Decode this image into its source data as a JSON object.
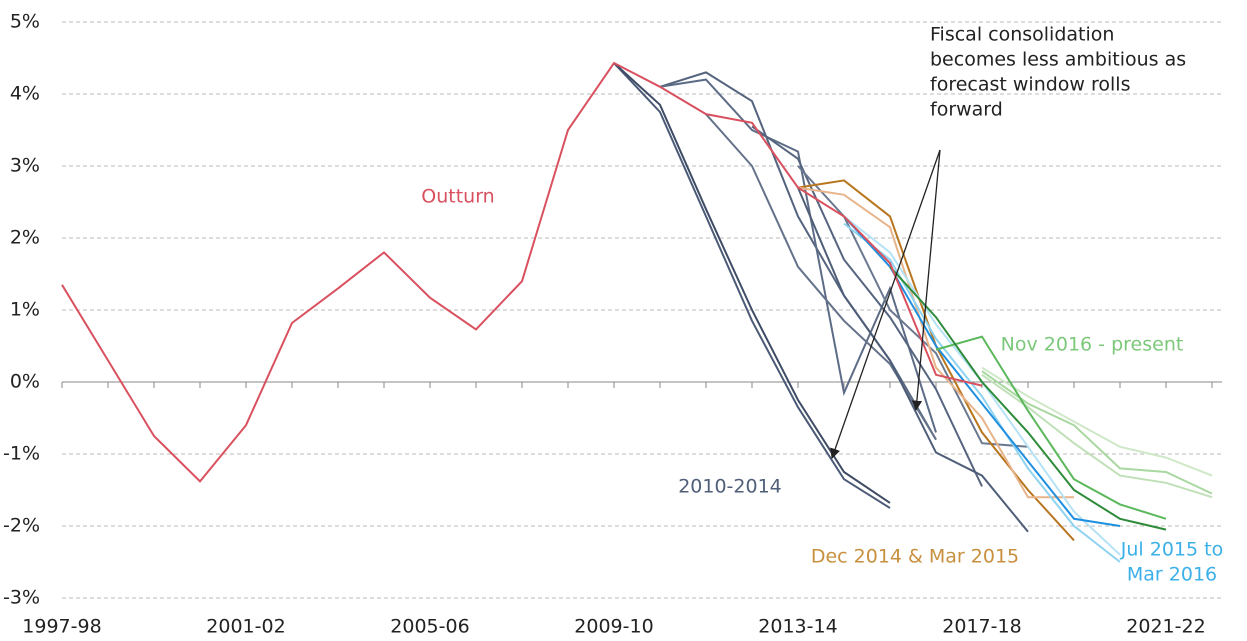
{
  "chart_data": {
    "type": "line",
    "categories": [
      "1997-98",
      null,
      null,
      null,
      "2001-02",
      null,
      null,
      null,
      "2005-06",
      null,
      null,
      null,
      "2009-10",
      null,
      null,
      null,
      "2013-14",
      null,
      null,
      null,
      "2017-18",
      null,
      null,
      null,
      "2021-22",
      null
    ],
    "ylim": [
      -3,
      5
    ],
    "yticks": [
      {
        "value": -3,
        "label": "-3%"
      },
      {
        "value": -2,
        "label": "-2%"
      },
      {
        "value": -1,
        "label": "-1%"
      },
      {
        "value": 0,
        "label": "0%"
      },
      {
        "value": 1,
        "label": "1%"
      },
      {
        "value": 2,
        "label": "2%"
      },
      {
        "value": 3,
        "label": "3%"
      },
      {
        "value": 4,
        "label": "4%"
      },
      {
        "value": 5,
        "label": "5%"
      }
    ],
    "grid": true,
    "series": [
      {
        "color": "#4b5a76",
        "values": [
          null,
          null,
          null,
          null,
          null,
          null,
          null,
          null,
          null,
          null,
          null,
          null,
          4.43,
          3.75,
          2.3,
          0.85,
          -0.35,
          -1.35,
          -1.75,
          null,
          null,
          null,
          null,
          null,
          null,
          null
        ]
      },
      {
        "color": "#3f4c66",
        "values": [
          null,
          null,
          null,
          null,
          null,
          null,
          null,
          null,
          null,
          null,
          null,
          null,
          4.43,
          3.85,
          2.4,
          1.0,
          -0.25,
          -1.25,
          -1.68,
          null,
          null,
          null,
          null,
          null,
          null,
          null
        ]
      },
      {
        "color": "#55647e",
        "values": [
          null,
          null,
          null,
          null,
          null,
          null,
          null,
          null,
          null,
          null,
          null,
          null,
          null,
          4.1,
          4.3,
          3.9,
          2.3,
          1.2,
          0.3,
          -0.8,
          null,
          null,
          null,
          null,
          null,
          null
        ]
      },
      {
        "color": "#5d6c86",
        "values": [
          null,
          null,
          null,
          null,
          null,
          null,
          null,
          null,
          null,
          null,
          null,
          null,
          null,
          4.1,
          4.2,
          3.5,
          3.2,
          -0.15,
          1.3,
          -0.7,
          null,
          null,
          null,
          null,
          null,
          null
        ]
      },
      {
        "color": "#64728a",
        "values": [
          null,
          null,
          null,
          null,
          null,
          null,
          null,
          null,
          null,
          null,
          null,
          null,
          null,
          null,
          3.72,
          3.0,
          1.6,
          0.85,
          0.25,
          -0.8,
          null,
          null,
          null,
          null,
          null,
          null
        ]
      },
      {
        "color": "#56657f",
        "values": [
          null,
          null,
          null,
          null,
          null,
          null,
          null,
          null,
          null,
          null,
          null,
          null,
          null,
          null,
          null,
          3.55,
          3.1,
          1.7,
          0.9,
          -0.1,
          -1.45,
          null,
          null,
          null,
          null,
          null
        ]
      },
      {
        "color": "#4f5e78",
        "values": [
          null,
          null,
          null,
          null,
          null,
          null,
          null,
          null,
          null,
          null,
          null,
          null,
          null,
          null,
          null,
          null,
          2.7,
          1.2,
          0.3,
          -0.98,
          -1.3,
          -2.08,
          null,
          null,
          null,
          null
        ]
      },
      {
        "color": "#6a7890",
        "values": [
          null,
          null,
          null,
          null,
          null,
          null,
          null,
          null,
          null,
          null,
          null,
          null,
          null,
          null,
          null,
          null,
          3.0,
          2.3,
          1.0,
          0.4,
          -0.85,
          -0.9,
          null,
          null,
          null,
          null
        ]
      },
      {
        "color": "#b8761e",
        "values": [
          null,
          null,
          null,
          null,
          null,
          null,
          null,
          null,
          null,
          null,
          null,
          null,
          null,
          null,
          null,
          null,
          2.7,
          2.8,
          2.3,
          0.5,
          -0.7,
          -1.5,
          -2.2,
          null,
          null,
          null
        ]
      },
      {
        "color": "#e8b48a",
        "values": [
          null,
          null,
          null,
          null,
          null,
          null,
          null,
          null,
          null,
          null,
          null,
          null,
          null,
          null,
          null,
          null,
          2.7,
          2.6,
          2.15,
          0.2,
          -0.5,
          -1.6,
          -1.6,
          null,
          null,
          null
        ]
      },
      {
        "color": "#b5e2f5",
        "values": [
          null,
          null,
          null,
          null,
          null,
          null,
          null,
          null,
          null,
          null,
          null,
          null,
          null,
          null,
          null,
          null,
          null,
          2.3,
          1.8,
          0.8,
          0.0,
          -0.9,
          -1.8,
          -2.4,
          null,
          null
        ]
      },
      {
        "color": "#8fd3f0",
        "values": [
          null,
          null,
          null,
          null,
          null,
          null,
          null,
          null,
          null,
          null,
          null,
          null,
          null,
          null,
          null,
          null,
          null,
          2.2,
          1.7,
          0.6,
          -0.2,
          -1.2,
          -2.0,
          -2.5,
          null,
          null
        ]
      },
      {
        "color": "#1f8fe0",
        "values": [
          null,
          null,
          null,
          null,
          null,
          null,
          null,
          null,
          null,
          null,
          null,
          null,
          null,
          null,
          null,
          null,
          null,
          2.3,
          1.6,
          0.5,
          -0.3,
          -1.1,
          -1.9,
          -2.0,
          null,
          null
        ]
      },
      {
        "color": "#cfe8c8",
        "values": [
          null,
          null,
          null,
          null,
          null,
          null,
          null,
          null,
          null,
          null,
          null,
          null,
          null,
          null,
          null,
          null,
          null,
          null,
          null,
          null,
          0.2,
          -0.2,
          -0.55,
          -0.9,
          -1.05,
          -1.3
        ]
      },
      {
        "color": "#c0e0b8",
        "values": [
          null,
          null,
          null,
          null,
          null,
          null,
          null,
          null,
          null,
          null,
          null,
          null,
          null,
          null,
          null,
          null,
          null,
          null,
          null,
          null,
          0.1,
          -0.35,
          -0.85,
          -1.3,
          -1.4,
          -1.6
        ]
      },
      {
        "color": "#a8d8a0",
        "values": [
          null,
          null,
          null,
          null,
          null,
          null,
          null,
          null,
          null,
          null,
          null,
          null,
          null,
          null,
          null,
          null,
          null,
          null,
          null,
          null,
          0.15,
          -0.3,
          -0.6,
          -1.2,
          -1.25,
          -1.55
        ]
      },
      {
        "color": "#5cb85c",
        "values": [
          null,
          null,
          null,
          null,
          null,
          null,
          null,
          null,
          null,
          null,
          null,
          null,
          null,
          null,
          null,
          null,
          null,
          null,
          null,
          0.45,
          0.63,
          -0.4,
          -1.35,
          -1.7,
          -1.9,
          null
        ]
      },
      {
        "color": "#2e8b3a",
        "values": [
          null,
          null,
          null,
          null,
          null,
          null,
          null,
          null,
          null,
          null,
          null,
          null,
          null,
          null,
          null,
          null,
          null,
          null,
          1.6,
          0.9,
          0.0,
          -0.7,
          -1.5,
          -1.9,
          -2.05,
          null
        ]
      },
      {
        "name": "Outturn",
        "color": "#d9515f",
        "values": [
          1.35,
          0.3,
          -0.75,
          -1.38,
          -0.6,
          0.82,
          1.3,
          1.8,
          1.17,
          0.73,
          1.4,
          3.5,
          4.43,
          4.1,
          3.72,
          3.6,
          2.7,
          2.3,
          1.65,
          0.1,
          -0.05,
          null,
          null,
          null,
          null,
          null
        ]
      }
    ],
    "annotations": [
      {
        "text": "2010-2014",
        "color": "#4f5f7a"
      },
      {
        "text": "Dec 2014 & Mar 2015",
        "color": "#c8903e"
      },
      {
        "text": [
          "Jul 2015 to",
          "Mar 2016"
        ],
        "color": "#3bb0e8"
      },
      {
        "text": "Nov 2016 - present",
        "color": "#7cc87a"
      },
      {
        "text": [
          "Fiscal consolidation",
          "becomes less ambitious as",
          "forecast window rolls",
          "forward"
        ],
        "color": "#222222"
      }
    ]
  }
}
